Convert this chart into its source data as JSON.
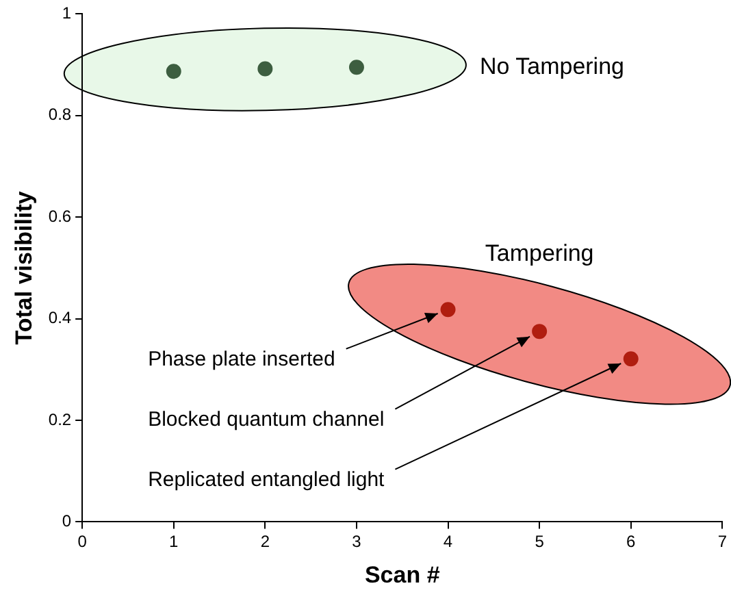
{
  "chart_data": {
    "type": "scatter",
    "xlabel": "Scan #",
    "ylabel": "Total visibility",
    "xlim": [
      0,
      7
    ],
    "xticks": [
      0,
      1,
      2,
      3,
      4,
      5,
      6,
      7
    ],
    "ylim": [
      0,
      1
    ],
    "yticks": [
      0,
      0.2,
      0.4,
      0.6,
      0.8,
      1
    ],
    "grid": false,
    "legend": false,
    "marker": "circle",
    "series": [
      {
        "name": "No Tampering",
        "color": "#3d5e40",
        "x": [
          1,
          2,
          3
        ],
        "values": [
          0.887,
          0.892,
          0.895
        ]
      },
      {
        "name": "Tampering",
        "color": "#b01e10",
        "x": [
          4,
          5,
          6
        ],
        "values": [
          0.418,
          0.375,
          0.321
        ]
      }
    ],
    "annotations": [
      {
        "text": "Phase plate inserted",
        "x": 4,
        "y": 0.418
      },
      {
        "text": "Blocked quantum channel",
        "x": 5,
        "y": 0.375
      },
      {
        "text": "Replicated entangled light",
        "x": 6,
        "y": 0.321
      }
    ]
  }
}
